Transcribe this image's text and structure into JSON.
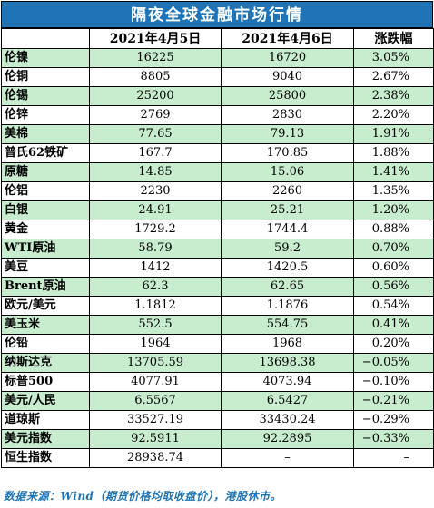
{
  "title": "隔夜全球金融市场行情",
  "headers": [
    "",
    "2021年4月5日",
    "2021年4月6日",
    "涨跌幅"
  ],
  "rows": [
    {
      "name": "伦镍",
      "d1": "16225",
      "d2": "16720",
      "chg": "3.05%"
    },
    {
      "name": "伦铜",
      "d1": "8805",
      "d2": "9040",
      "chg": "2.67%"
    },
    {
      "name": "伦锡",
      "d1": "25200",
      "d2": "25800",
      "chg": "2.38%"
    },
    {
      "name": "伦锌",
      "d1": "2769",
      "d2": "2830",
      "chg": "2.20%"
    },
    {
      "name": "美棉",
      "d1": "77.65",
      "d2": "79.13",
      "chg": "1.91%"
    },
    {
      "name": "普氏62铁矿",
      "d1": "167.7",
      "d2": "170.85",
      "chg": "1.88%"
    },
    {
      "name": "原糖",
      "d1": "14.85",
      "d2": "15.06",
      "chg": "1.41%"
    },
    {
      "name": "伦铝",
      "d1": "2230",
      "d2": "2260",
      "chg": "1.35%"
    },
    {
      "name": "白银",
      "d1": "24.91",
      "d2": "25.21",
      "chg": "1.20%"
    },
    {
      "name": "黄金",
      "d1": "1729.2",
      "d2": "1744.4",
      "chg": "0.88%"
    },
    {
      "name": "WTI原油",
      "d1": "58.79",
      "d2": "59.2",
      "chg": "0.70%"
    },
    {
      "name": "美豆",
      "d1": "1412",
      "d2": "1420.5",
      "chg": "0.60%"
    },
    {
      "name": "Brent原油",
      "d1": "62.3",
      "d2": "62.65",
      "chg": "0.56%"
    },
    {
      "name": "欧元/美元",
      "d1": "1.1812",
      "d2": "1.1876",
      "chg": "0.54%"
    },
    {
      "name": "美玉米",
      "d1": "552.5",
      "d2": "554.75",
      "chg": "0.41%"
    },
    {
      "name": "伦铅",
      "d1": "1964",
      "d2": "1968",
      "chg": "0.20%"
    },
    {
      "name": "纳斯达克",
      "d1": "13705.59",
      "d2": "13698.38",
      "chg": "−0.05%"
    },
    {
      "name": "标普500",
      "d1": "4077.91",
      "d2": "4073.94",
      "chg": "−0.10%"
    },
    {
      "name": "美元/人民",
      "d1": "6.5567",
      "d2": "6.5427",
      "chg": "−0.21%"
    },
    {
      "name": "道琼斯",
      "d1": "33527.19",
      "d2": "33430.24",
      "chg": "−0.29%"
    },
    {
      "name": "美元指数",
      "d1": "92.5911",
      "d2": "92.2895",
      "chg": "−0.33%"
    },
    {
      "name": "恒生指数",
      "d1": "28938.74",
      "d2": "–",
      "chg": "–"
    }
  ],
  "source": "数据来源：Wind（期货价格均取收盘价），港股休市。",
  "colors": {
    "header_blue": "#1f74b7",
    "row_green": "#c7ecce",
    "row_white": "#ffffff"
  }
}
